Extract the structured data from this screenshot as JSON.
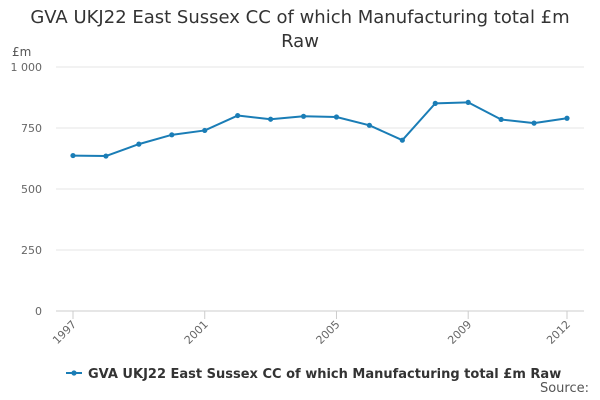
{
  "chart_data": {
    "type": "line",
    "title_lines": [
      "GVA UKJ22 East Sussex CC of which Manufacturing total £m",
      "Raw"
    ],
    "unit_label": "£m",
    "x": [
      1997,
      1998,
      1999,
      2000,
      2001,
      2002,
      2003,
      2004,
      2005,
      2006,
      2007,
      2008,
      2009,
      2010,
      2011,
      2012
    ],
    "x_tick_labels": [
      "1997",
      "2001",
      "2005",
      "2009",
      "2012"
    ],
    "y_tick_labels": [
      "0",
      "250",
      "500",
      "750",
      "1 000"
    ],
    "y_ticks": [
      0,
      250,
      500,
      750,
      1000
    ],
    "ylim": [
      0,
      1000
    ],
    "grid": true,
    "legend_position": "bottom",
    "series": [
      {
        "name": "GVA UKJ22 East Sussex CC of which Manufacturing total £m Raw",
        "color": "#1a7db6",
        "values": [
          637,
          635,
          684,
          722,
          740,
          801,
          786,
          798,
          795,
          761,
          700,
          851,
          855,
          785,
          770,
          790
        ]
      }
    ]
  },
  "source_label": "Source:"
}
